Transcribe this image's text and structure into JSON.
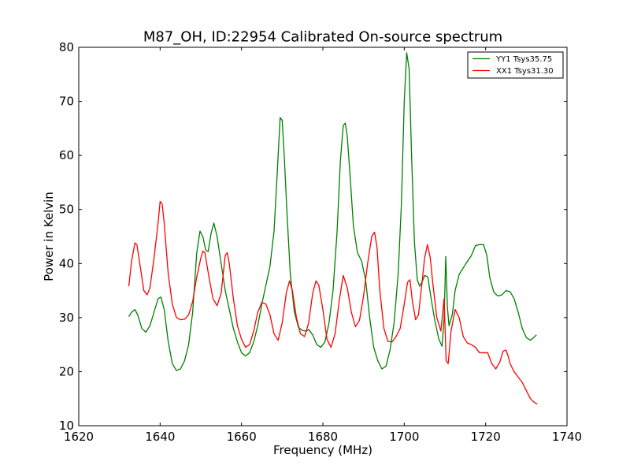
{
  "chart_data": {
    "type": "line",
    "title": "M87_OH, ID:22954 Calibrated On-source spectrum",
    "xlabel": "Frequency (MHz)",
    "ylabel": "Power in Kelvin",
    "xlim": [
      1620,
      1740
    ],
    "ylim": [
      10,
      80
    ],
    "xticks": [
      "1620",
      "1640",
      "1660",
      "1680",
      "1700",
      "1720",
      "1740"
    ],
    "yticks": [
      "10",
      "20",
      "30",
      "40",
      "50",
      "60",
      "70",
      "80"
    ],
    "grid": false,
    "legend_position": "top-right",
    "series": [
      {
        "name": "YY1 Tsys35.75",
        "color": "#008000",
        "points": [
          [
            1632.3,
            30.2
          ],
          [
            1633.0,
            31.0
          ],
          [
            1633.8,
            31.5
          ],
          [
            1634.5,
            30.5
          ],
          [
            1635.5,
            28.0
          ],
          [
            1636.5,
            27.3
          ],
          [
            1637.5,
            28.5
          ],
          [
            1638.5,
            31.0
          ],
          [
            1639.5,
            33.5
          ],
          [
            1640.2,
            33.8
          ],
          [
            1641.0,
            31.5
          ],
          [
            1642.0,
            25.5
          ],
          [
            1643.0,
            21.5
          ],
          [
            1644.0,
            20.2
          ],
          [
            1645.0,
            20.5
          ],
          [
            1646.0,
            22.0
          ],
          [
            1647.0,
            25.0
          ],
          [
            1648.0,
            31.0
          ],
          [
            1649.0,
            42.0
          ],
          [
            1649.8,
            46.0
          ],
          [
            1650.5,
            45.0
          ],
          [
            1651.2,
            42.5
          ],
          [
            1651.8,
            42.2
          ],
          [
            1652.5,
            45.5
          ],
          [
            1653.2,
            47.5
          ],
          [
            1654.0,
            45.0
          ],
          [
            1655.0,
            40.0
          ],
          [
            1656.0,
            35.0
          ],
          [
            1657.0,
            31.5
          ],
          [
            1658.0,
            28.0
          ],
          [
            1659.0,
            25.5
          ],
          [
            1660.0,
            23.5
          ],
          [
            1661.0,
            22.9
          ],
          [
            1662.0,
            23.5
          ],
          [
            1663.0,
            25.5
          ],
          [
            1664.0,
            28.5
          ],
          [
            1665.0,
            32.5
          ],
          [
            1666.0,
            36.0
          ],
          [
            1667.0,
            39.5
          ],
          [
            1668.0,
            46.0
          ],
          [
            1668.8,
            57.0
          ],
          [
            1669.5,
            67.0
          ],
          [
            1670.0,
            66.5
          ],
          [
            1670.5,
            60.0
          ],
          [
            1671.2,
            49.0
          ],
          [
            1672.0,
            38.0
          ],
          [
            1673.0,
            31.0
          ],
          [
            1674.0,
            28.2
          ],
          [
            1675.0,
            27.6
          ],
          [
            1676.0,
            27.5
          ],
          [
            1676.5,
            27.8
          ],
          [
            1677.5,
            26.8
          ],
          [
            1678.5,
            25.0
          ],
          [
            1679.5,
            24.5
          ],
          [
            1680.5,
            25.5
          ],
          [
            1681.5,
            29.0
          ],
          [
            1682.5,
            35.0
          ],
          [
            1683.5,
            46.0
          ],
          [
            1684.3,
            59.0
          ],
          [
            1685.0,
            65.5
          ],
          [
            1685.5,
            66.0
          ],
          [
            1686.0,
            63.5
          ],
          [
            1686.8,
            55.0
          ],
          [
            1687.5,
            47.0
          ],
          [
            1688.5,
            42.0
          ],
          [
            1689.5,
            40.5
          ],
          [
            1690.5,
            37.0
          ],
          [
            1691.5,
            30.0
          ],
          [
            1692.5,
            24.5
          ],
          [
            1693.5,
            22.0
          ],
          [
            1694.5,
            20.5
          ],
          [
            1695.5,
            21.0
          ],
          [
            1696.5,
            24.0
          ],
          [
            1697.5,
            29.0
          ],
          [
            1698.5,
            38.0
          ],
          [
            1699.3,
            51.0
          ],
          [
            1700.0,
            70.0
          ],
          [
            1700.6,
            79.0
          ],
          [
            1701.2,
            76.0
          ],
          [
            1701.8,
            60.0
          ],
          [
            1702.5,
            44.0
          ],
          [
            1703.2,
            37.0
          ],
          [
            1703.8,
            35.8
          ],
          [
            1704.5,
            36.8
          ],
          [
            1705.0,
            37.8
          ],
          [
            1705.8,
            37.5
          ],
          [
            1706.5,
            34.0
          ],
          [
            1707.5,
            29.5
          ],
          [
            1708.5,
            26.0
          ],
          [
            1709.3,
            24.7
          ],
          [
            1709.8,
            30.0
          ],
          [
            1710.2,
            41.3
          ],
          [
            1710.6,
            32.0
          ],
          [
            1711.0,
            28.5
          ],
          [
            1711.8,
            30.5
          ],
          [
            1712.5,
            35.0
          ],
          [
            1713.5,
            38.0
          ],
          [
            1715.0,
            39.8
          ],
          [
            1716.5,
            41.5
          ],
          [
            1717.5,
            43.3
          ],
          [
            1718.5,
            43.5
          ],
          [
            1719.5,
            43.5
          ],
          [
            1720.3,
            41.5
          ],
          [
            1721.0,
            37.5
          ],
          [
            1722.0,
            34.7
          ],
          [
            1723.0,
            34.0
          ],
          [
            1724.0,
            34.2
          ],
          [
            1725.0,
            35.0
          ],
          [
            1726.0,
            34.8
          ],
          [
            1727.0,
            33.5
          ],
          [
            1728.0,
            31.0
          ],
          [
            1729.0,
            28.0
          ],
          [
            1730.0,
            26.3
          ],
          [
            1731.0,
            25.8
          ],
          [
            1731.8,
            26.3
          ],
          [
            1732.5,
            26.8
          ]
        ]
      },
      {
        "name": "XX1 Tsys31.30",
        "color": "#ff0000",
        "points": [
          [
            1632.3,
            35.8
          ],
          [
            1633.0,
            40.5
          ],
          [
            1633.8,
            43.8
          ],
          [
            1634.3,
            43.5
          ],
          [
            1635.0,
            40.0
          ],
          [
            1636.0,
            35.0
          ],
          [
            1636.8,
            34.2
          ],
          [
            1637.5,
            35.5
          ],
          [
            1638.5,
            41.0
          ],
          [
            1639.5,
            47.5
          ],
          [
            1640.0,
            51.5
          ],
          [
            1640.5,
            51.0
          ],
          [
            1641.0,
            47.5
          ],
          [
            1642.0,
            38.0
          ],
          [
            1643.0,
            32.5
          ],
          [
            1644.0,
            30.0
          ],
          [
            1645.0,
            29.6
          ],
          [
            1646.0,
            29.7
          ],
          [
            1647.0,
            30.5
          ],
          [
            1648.0,
            33.0
          ],
          [
            1649.0,
            37.5
          ],
          [
            1650.0,
            41.0
          ],
          [
            1650.5,
            42.3
          ],
          [
            1651.0,
            42.0
          ],
          [
            1652.0,
            37.5
          ],
          [
            1653.0,
            33.5
          ],
          [
            1654.0,
            32.2
          ],
          [
            1655.0,
            34.5
          ],
          [
            1656.0,
            41.5
          ],
          [
            1656.5,
            42.0
          ],
          [
            1657.0,
            40.0
          ],
          [
            1658.0,
            33.5
          ],
          [
            1659.0,
            28.5
          ],
          [
            1660.0,
            26.0
          ],
          [
            1661.0,
            24.5
          ],
          [
            1662.0,
            25.0
          ],
          [
            1663.0,
            27.5
          ],
          [
            1664.0,
            31.0
          ],
          [
            1665.0,
            32.8
          ],
          [
            1666.0,
            32.5
          ],
          [
            1667.0,
            30.5
          ],
          [
            1668.0,
            27.0
          ],
          [
            1669.0,
            25.8
          ],
          [
            1670.0,
            29.0
          ],
          [
            1671.0,
            34.5
          ],
          [
            1671.8,
            36.8
          ],
          [
            1672.5,
            35.0
          ],
          [
            1673.5,
            30.0
          ],
          [
            1674.5,
            27.0
          ],
          [
            1675.5,
            26.5
          ],
          [
            1676.5,
            29.0
          ],
          [
            1677.5,
            34.5
          ],
          [
            1678.3,
            36.8
          ],
          [
            1679.0,
            36.0
          ],
          [
            1680.0,
            31.5
          ],
          [
            1681.0,
            26.0
          ],
          [
            1682.0,
            24.5
          ],
          [
            1683.0,
            27.0
          ],
          [
            1684.0,
            33.0
          ],
          [
            1685.0,
            37.8
          ],
          [
            1686.0,
            35.5
          ],
          [
            1687.0,
            31.0
          ],
          [
            1688.0,
            28.3
          ],
          [
            1689.0,
            29.5
          ],
          [
            1690.0,
            34.0
          ],
          [
            1691.0,
            40.0
          ],
          [
            1692.0,
            45.0
          ],
          [
            1692.7,
            45.8
          ],
          [
            1693.3,
            43.0
          ],
          [
            1694.0,
            35.0
          ],
          [
            1695.0,
            28.0
          ],
          [
            1696.0,
            25.6
          ],
          [
            1697.0,
            25.5
          ],
          [
            1698.0,
            26.5
          ],
          [
            1699.0,
            28.0
          ],
          [
            1700.0,
            32.5
          ],
          [
            1700.8,
            36.5
          ],
          [
            1701.4,
            37.0
          ],
          [
            1702.0,
            33.0
          ],
          [
            1702.8,
            29.6
          ],
          [
            1703.5,
            30.5
          ],
          [
            1704.3,
            36.0
          ],
          [
            1705.0,
            41.0
          ],
          [
            1705.7,
            43.5
          ],
          [
            1706.4,
            41.0
          ],
          [
            1707.0,
            36.5
          ],
          [
            1708.0,
            30.0
          ],
          [
            1709.0,
            27.5
          ],
          [
            1709.8,
            33.5
          ],
          [
            1710.3,
            22.0
          ],
          [
            1710.8,
            21.5
          ],
          [
            1711.5,
            27.5
          ],
          [
            1712.5,
            31.5
          ],
          [
            1713.5,
            30.0
          ],
          [
            1714.5,
            26.5
          ],
          [
            1715.5,
            25.3
          ],
          [
            1716.5,
            25.0
          ],
          [
            1717.5,
            24.5
          ],
          [
            1718.5,
            23.5
          ],
          [
            1719.5,
            23.5
          ],
          [
            1720.5,
            23.5
          ],
          [
            1721.5,
            21.5
          ],
          [
            1722.5,
            20.5
          ],
          [
            1723.5,
            21.8
          ],
          [
            1724.3,
            23.8
          ],
          [
            1725.0,
            24.0
          ],
          [
            1725.5,
            23.0
          ],
          [
            1726.0,
            21.5
          ],
          [
            1727.0,
            20.0
          ],
          [
            1728.0,
            19.0
          ],
          [
            1729.0,
            18.0
          ],
          [
            1730.0,
            16.5
          ],
          [
            1731.0,
            15.0
          ],
          [
            1732.0,
            14.3
          ],
          [
            1732.7,
            14.0
          ]
        ]
      }
    ]
  }
}
